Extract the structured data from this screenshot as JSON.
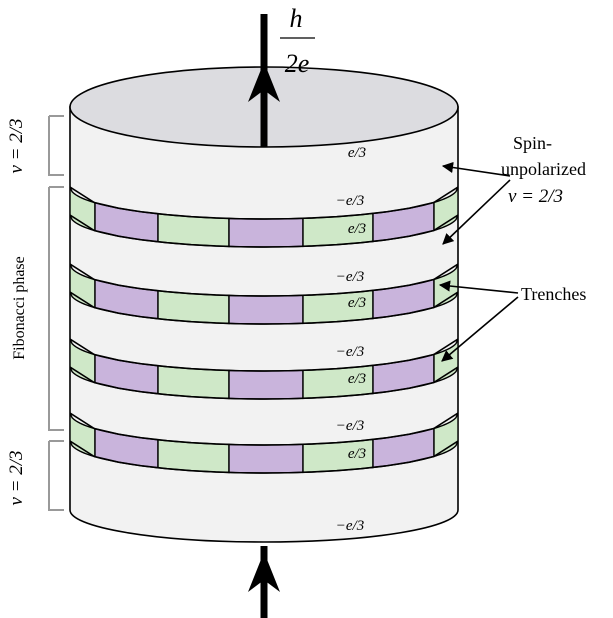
{
  "flux": {
    "numerator": "h",
    "denominator": "2e"
  },
  "side_labels": {
    "top_filling": "ν = 2/3",
    "fibonacci": "Fibonacci phase",
    "bottom_filling": "ν = 2/3"
  },
  "annotations": {
    "spin_line1": "Spin-",
    "spin_line2": "unpolarized",
    "spin_line3": "ν = 2/3",
    "trenches": "Trenches"
  },
  "charges": [
    "e/3",
    "−e/3",
    "e/3",
    "−e/3",
    "e/3",
    "−e/3",
    "e/3",
    "−e/3",
    "e/3",
    "−e/3"
  ],
  "colors": {
    "green_segment": "#cfe8c8",
    "purple_segment": "#c9b4dc",
    "cylinder_body": "#f2f2f2",
    "cylinder_top": "#dcdce0",
    "bracket": "#999999",
    "stroke": "#000000"
  }
}
